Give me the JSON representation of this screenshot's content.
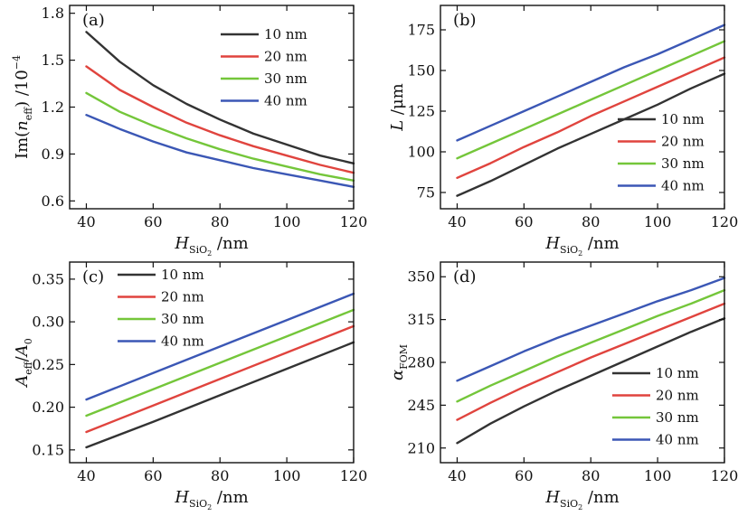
{
  "figure": {
    "colors": {
      "10 nm": "#333333",
      "20 nm": "#e0443e",
      "30 nm": "#74c63a",
      "40 nm": "#3b57b5"
    }
  },
  "chart_data": [
    {
      "type": "line",
      "panel": "(a)",
      "xlabel": {
        "main": "H",
        "sub": "SiO",
        "subsub": "2",
        "rest": " /nm"
      },
      "ylabel": {
        "pre": "Im(",
        "italic": "n",
        "sub": "eff",
        "post": ") /10",
        "sup": "−4"
      },
      "xlim": [
        35,
        120
      ],
      "ylim": [
        0.55,
        1.85
      ],
      "xticks": [
        40,
        60,
        80,
        100,
        120
      ],
      "yticks": [
        0.6,
        0.9,
        1.2,
        1.5,
        1.8
      ],
      "ytick_labels": [
        "0.6",
        "0.9",
        "1.2",
        "1.5",
        "1.8"
      ],
      "legend": "top-right",
      "series": [
        {
          "name": "10 nm",
          "x": [
            40,
            50,
            60,
            70,
            80,
            90,
            100,
            110,
            120
          ],
          "values": [
            1.68,
            1.49,
            1.34,
            1.22,
            1.12,
            1.03,
            0.96,
            0.89,
            0.84
          ]
        },
        {
          "name": "20 nm",
          "x": [
            40,
            50,
            60,
            70,
            80,
            90,
            100,
            110,
            120
          ],
          "values": [
            1.46,
            1.31,
            1.2,
            1.1,
            1.02,
            0.95,
            0.89,
            0.83,
            0.78
          ]
        },
        {
          "name": "30 nm",
          "x": [
            40,
            50,
            60,
            70,
            80,
            90,
            100,
            110,
            120
          ],
          "values": [
            1.29,
            1.17,
            1.08,
            1.0,
            0.93,
            0.87,
            0.82,
            0.77,
            0.73
          ]
        },
        {
          "name": "40 nm",
          "x": [
            40,
            50,
            60,
            70,
            80,
            90,
            100,
            110,
            120
          ],
          "values": [
            1.15,
            1.06,
            0.98,
            0.91,
            0.86,
            0.81,
            0.77,
            0.73,
            0.69
          ]
        }
      ]
    },
    {
      "type": "line",
      "panel": "(b)",
      "xlabel": {
        "main": "H",
        "sub": "SiO",
        "subsub": "2",
        "rest": " /nm"
      },
      "ylabel": {
        "pre": "",
        "italic": "L",
        "sub": "",
        "post": " /μm",
        "sup": ""
      },
      "xlim": [
        35,
        120
      ],
      "ylim": [
        65,
        190
      ],
      "xticks": [
        40,
        60,
        80,
        100,
        120
      ],
      "yticks": [
        75,
        100,
        125,
        150,
        175
      ],
      "ytick_labels": [
        "75",
        "100",
        "125",
        "150",
        "175"
      ],
      "legend": "bottom-right",
      "series": [
        {
          "name": "10 nm",
          "x": [
            40,
            50,
            60,
            70,
            80,
            90,
            100,
            110,
            120
          ],
          "values": [
            73,
            82,
            92,
            102,
            111,
            120,
            129,
            139,
            148
          ]
        },
        {
          "name": "20 nm",
          "x": [
            40,
            50,
            60,
            70,
            80,
            90,
            100,
            110,
            120
          ],
          "values": [
            84,
            93,
            103,
            112,
            122,
            131,
            140,
            149,
            158
          ]
        },
        {
          "name": "30 nm",
          "x": [
            40,
            50,
            60,
            70,
            80,
            90,
            100,
            110,
            120
          ],
          "values": [
            96,
            105,
            114,
            123,
            132,
            141,
            150,
            159,
            168
          ]
        },
        {
          "name": "40 nm",
          "x": [
            40,
            50,
            60,
            70,
            80,
            90,
            100,
            110,
            120
          ],
          "values": [
            107,
            116,
            125,
            134,
            143,
            152,
            160,
            169,
            178
          ]
        }
      ]
    },
    {
      "type": "line",
      "panel": "(c)",
      "xlabel": {
        "main": "H",
        "sub": "SiO",
        "subsub": "2",
        "rest": " /nm"
      },
      "ylabel": {
        "pre": "",
        "italic": "A",
        "sub": "eff",
        "post": "/",
        "italic2": "A",
        "sub2": "0",
        "sup": ""
      },
      "xlim": [
        35,
        120
      ],
      "ylim": [
        0.135,
        0.37
      ],
      "xticks": [
        40,
        60,
        80,
        100,
        120
      ],
      "yticks": [
        0.15,
        0.2,
        0.25,
        0.3,
        0.35
      ],
      "ytick_labels": [
        "0.15",
        "0.20",
        "0.25",
        "0.30",
        "0.35"
      ],
      "legend": "top-left",
      "series": [
        {
          "name": "10 nm",
          "x": [
            40,
            60,
            80,
            100,
            120
          ],
          "values": [
            0.153,
            0.183,
            0.214,
            0.245,
            0.276
          ]
        },
        {
          "name": "20 nm",
          "x": [
            40,
            60,
            80,
            100,
            120
          ],
          "values": [
            0.171,
            0.202,
            0.233,
            0.264,
            0.295
          ]
        },
        {
          "name": "30 nm",
          "x": [
            40,
            60,
            80,
            100,
            120
          ],
          "values": [
            0.19,
            0.221,
            0.252,
            0.283,
            0.314
          ]
        },
        {
          "name": "40 nm",
          "x": [
            40,
            60,
            80,
            100,
            120
          ],
          "values": [
            0.209,
            0.24,
            0.271,
            0.302,
            0.333
          ]
        }
      ]
    },
    {
      "type": "line",
      "panel": "(d)",
      "xlabel": {
        "main": "H",
        "sub": "SiO",
        "subsub": "2",
        "rest": " /nm"
      },
      "ylabel": {
        "pre": "",
        "italic": "α",
        "sub": "FOM",
        "post": "",
        "sup": ""
      },
      "xlim": [
        35,
        120
      ],
      "ylim": [
        198,
        362
      ],
      "xticks": [
        40,
        60,
        80,
        100,
        120
      ],
      "yticks": [
        210,
        245,
        280,
        315,
        350
      ],
      "ytick_labels": [
        "210",
        "245",
        "280",
        "315",
        "350"
      ],
      "legend": "bottom-right",
      "series": [
        {
          "name": "10 nm",
          "x": [
            40,
            50,
            60,
            70,
            80,
            90,
            100,
            110,
            120
          ],
          "values": [
            214,
            230,
            244,
            257,
            269,
            281,
            293,
            305,
            316
          ]
        },
        {
          "name": "20 nm",
          "x": [
            40,
            50,
            60,
            70,
            80,
            90,
            100,
            110,
            120
          ],
          "values": [
            233,
            247,
            260,
            272,
            284,
            295,
            306,
            317,
            328
          ]
        },
        {
          "name": "30 nm",
          "x": [
            40,
            50,
            60,
            70,
            80,
            90,
            100,
            110,
            120
          ],
          "values": [
            248,
            261,
            273,
            285,
            296,
            307,
            318,
            328,
            339
          ]
        },
        {
          "name": "40 nm",
          "x": [
            40,
            50,
            60,
            70,
            80,
            90,
            100,
            110,
            120
          ],
          "values": [
            265,
            277,
            289,
            300,
            310,
            320,
            330,
            339,
            349
          ]
        }
      ]
    }
  ]
}
